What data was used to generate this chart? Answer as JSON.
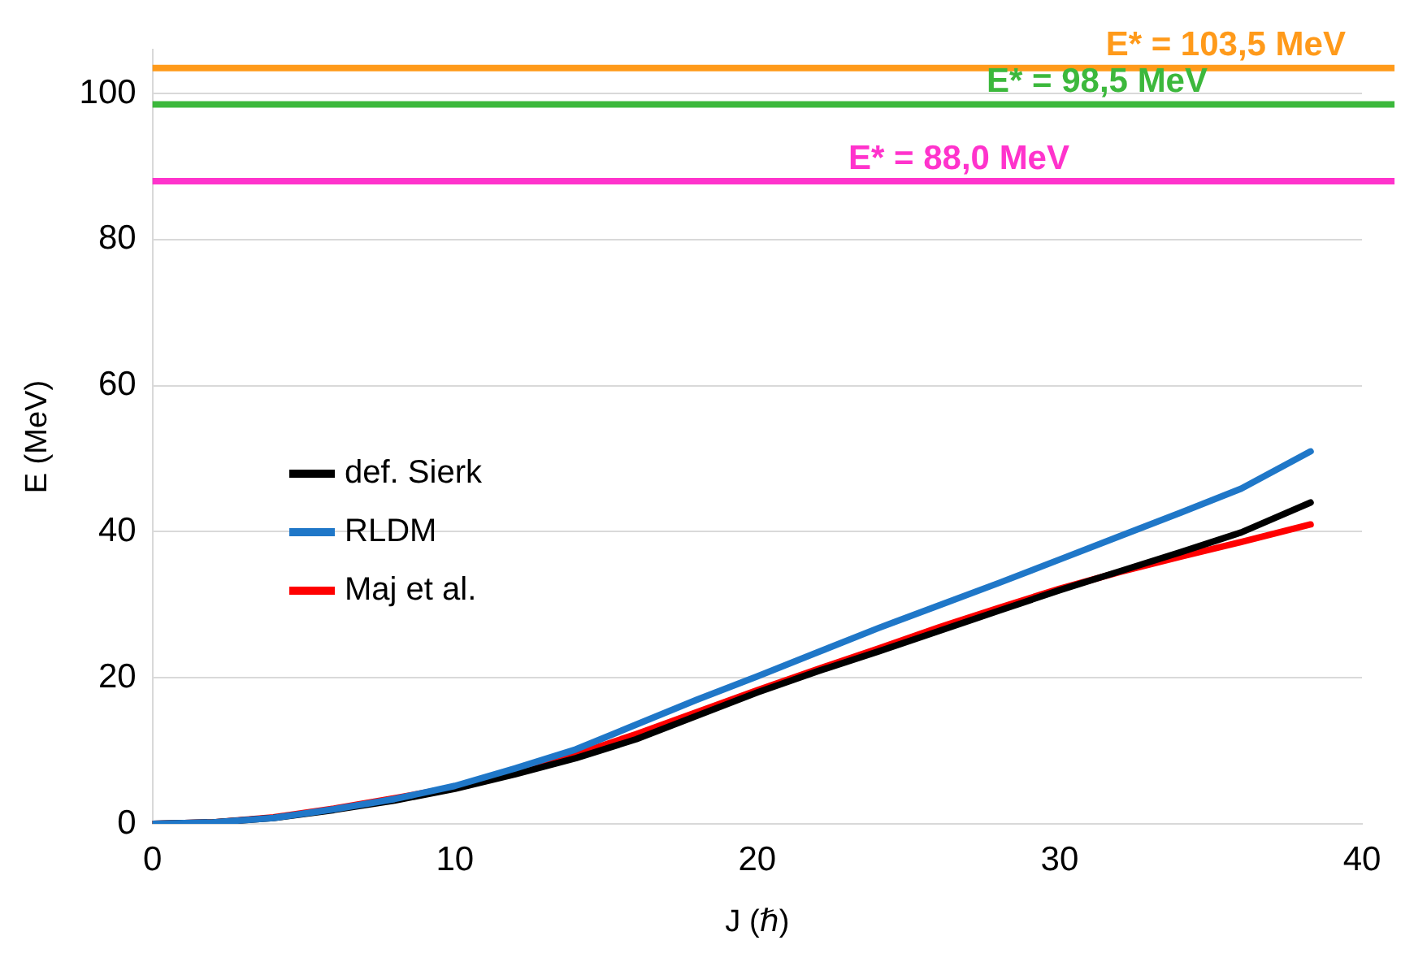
{
  "chart_data": {
    "type": "line",
    "xlabel": "J (ℏ)",
    "ylabel": "E (MeV)",
    "xlim": [
      0,
      40
    ],
    "xticks": [
      0,
      10,
      20,
      30,
      40
    ],
    "ylim": [
      0,
      106
    ],
    "yticks": [
      0,
      20,
      40,
      60,
      80,
      100
    ],
    "grid": "y",
    "legend": "left",
    "marker": "none",
    "line_style": "solid",
    "series": [
      {
        "name": "def. Sierk",
        "color": "#000000",
        "x": [
          0,
          2,
          4,
          6,
          8,
          10,
          12,
          14,
          16,
          18,
          20,
          22,
          24,
          26,
          28,
          30,
          32,
          34,
          36,
          38.3
        ],
        "values": [
          0,
          0.2,
          0.8,
          1.9,
          3.2,
          4.8,
          6.8,
          9,
          11.6,
          14.8,
          18,
          20.9,
          23.6,
          26.4,
          29.2,
          32,
          34.6,
          37.2,
          39.9,
          44
        ]
      },
      {
        "name": "RLDM",
        "color": "#1f77c8",
        "x": [
          0,
          2,
          4,
          6,
          8,
          10,
          12,
          14,
          16,
          18,
          20,
          22,
          24,
          26,
          28,
          30,
          32,
          34,
          36,
          38.3
        ],
        "values": [
          0,
          0.2,
          0.8,
          2,
          3.4,
          5.2,
          7.6,
          10.2,
          13.6,
          17,
          20.2,
          23.5,
          26.8,
          29.9,
          33,
          36.2,
          39.4,
          42.6,
          45.9,
          51
        ]
      },
      {
        "name": "Maj et al.",
        "color": "#ff0000",
        "x": [
          0,
          2,
          4,
          6,
          8,
          10,
          12,
          14,
          16,
          18,
          20,
          22,
          24,
          26,
          28,
          30,
          32,
          34,
          36,
          38.3
        ],
        "values": [
          0,
          0.2,
          0.9,
          2.1,
          3.5,
          5,
          7.1,
          9.5,
          12.3,
          15.3,
          18.3,
          21.2,
          24,
          26.9,
          29.6,
          32.2,
          34.5,
          36.6,
          38.6,
          41
        ]
      }
    ],
    "ref_lines": [
      {
        "axis": "y",
        "value": 103.5,
        "label": "E* = 103,5 MeV",
        "color": "#ff9a1a"
      },
      {
        "axis": "y",
        "value": 98.5,
        "label": "E* = 98,5 MeV",
        "color": "#3cb83c"
      },
      {
        "axis": "y",
        "value": 88,
        "label": "E* = 88,0 MeV",
        "color": "#ff33cc"
      }
    ]
  }
}
